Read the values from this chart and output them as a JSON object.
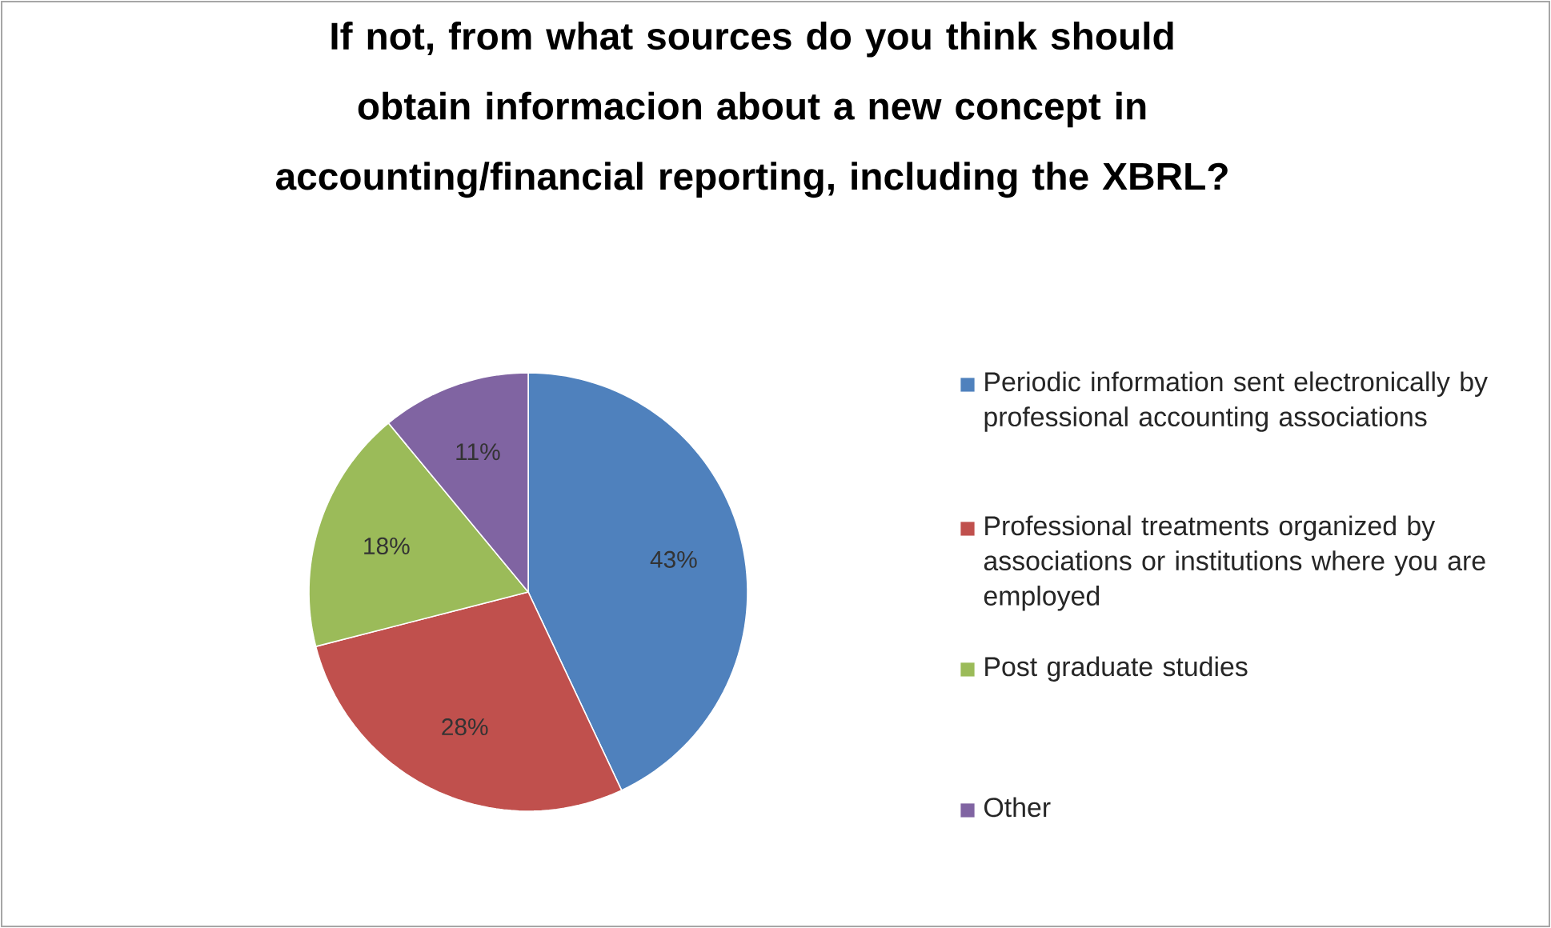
{
  "chart_data": {
    "type": "pie",
    "title": "If not, from what sources do you think should obtain informacion  about a new concept in accounting/financial reporting, including the XBRL?",
    "categories": [
      "Periodic information sent electronically by professional accounting associations",
      "Professional treatments organized by associations or institutions where you are employed",
      "Post graduate studies",
      "Other"
    ],
    "values": [
      43,
      28,
      18,
      11
    ],
    "value_labels": [
      "43%",
      "28%",
      "18%",
      "11%"
    ],
    "colors": [
      "#4f81bd",
      "#c0504d",
      "#9bbb59",
      "#8064a2"
    ],
    "legend": "right"
  }
}
